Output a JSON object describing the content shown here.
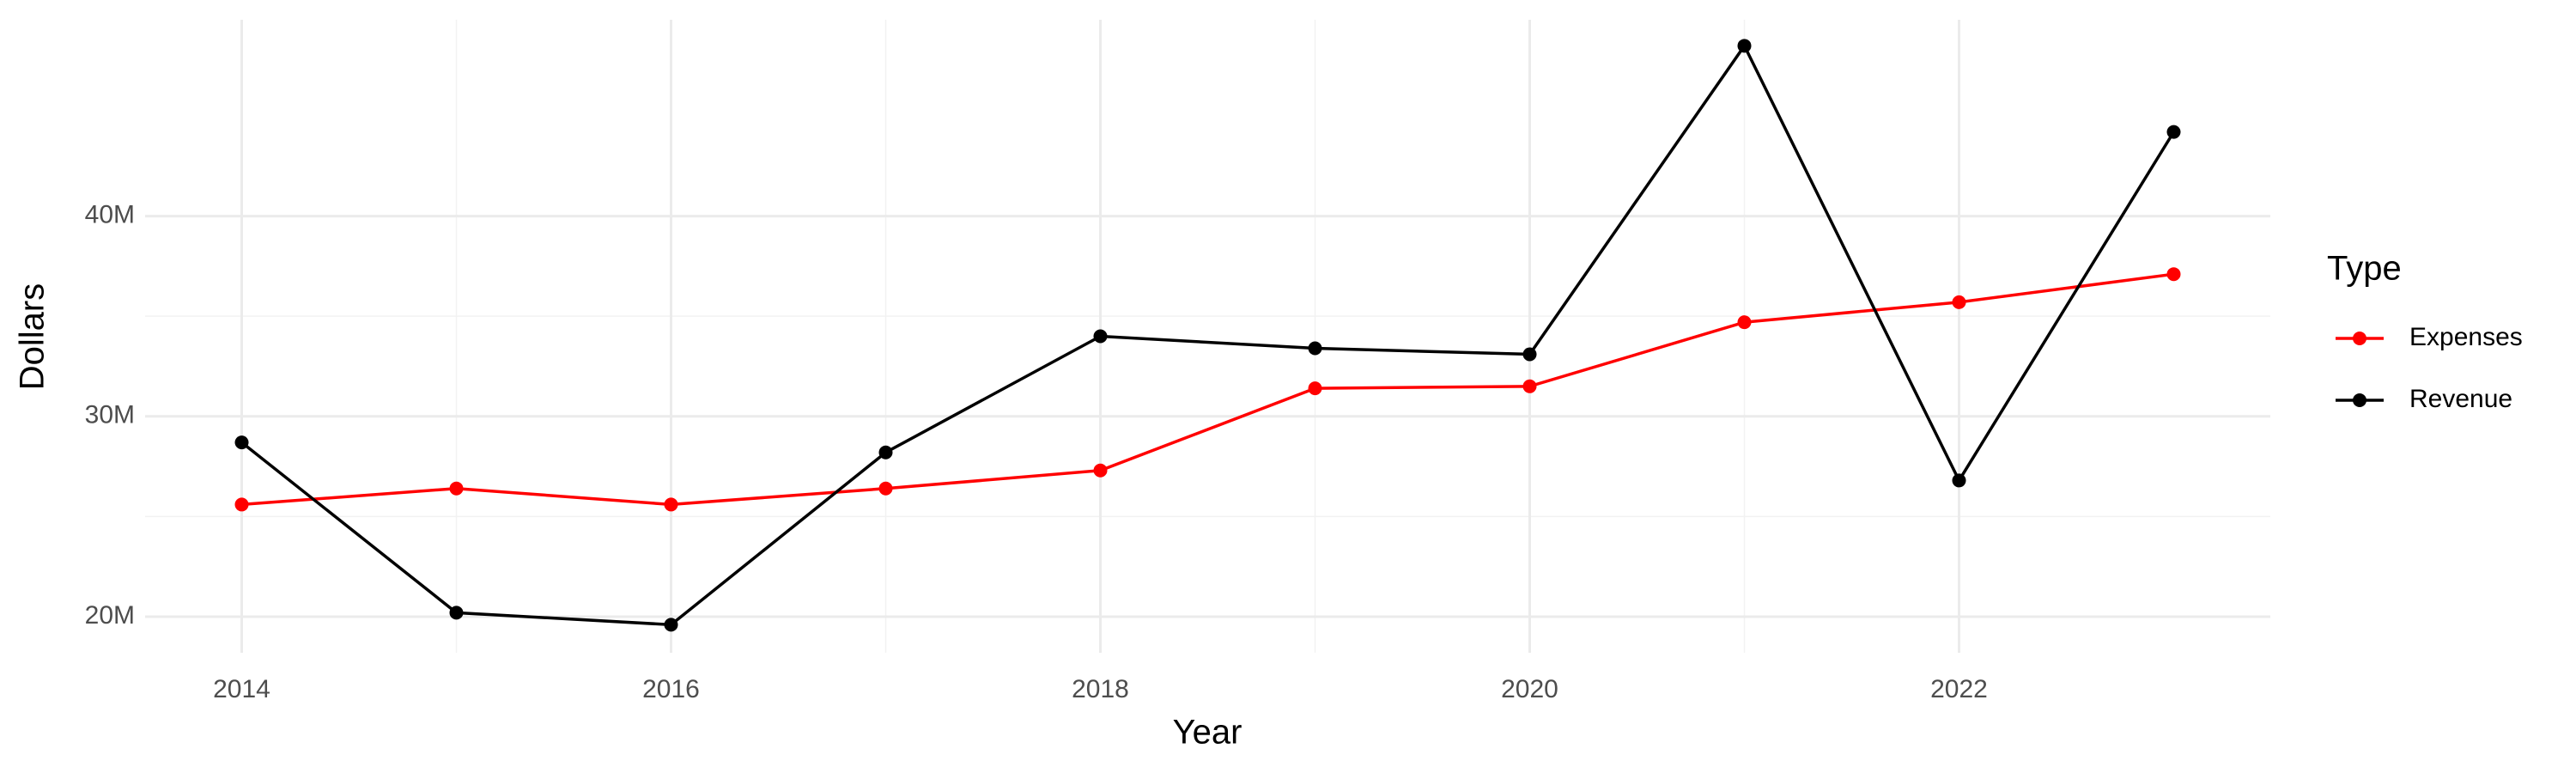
{
  "chart_data": {
    "type": "line",
    "x_label": "Year",
    "y_label": "Dollars",
    "legend_title": "Type",
    "legend_position": "right",
    "grid": true,
    "x": [
      2014,
      2015,
      2016,
      2017,
      2018,
      2019,
      2020,
      2021,
      2022,
      2023
    ],
    "series": [
      {
        "name": "Expenses",
        "color": "#ff0000",
        "values": [
          25600000,
          26400000,
          25600000,
          26400000,
          27300000,
          31400000,
          31500000,
          34700000,
          35700000,
          37100000
        ]
      },
      {
        "name": "Revenue",
        "color": "#000000",
        "values": [
          28700000,
          20200000,
          19600000,
          28200000,
          34000000,
          33400000,
          33100000,
          48500000,
          26800000,
          44200000
        ]
      }
    ],
    "xlim": [
      2013.55,
      2023.45
    ],
    "xticks": [
      2014,
      2016,
      2018,
      2020,
      2022
    ],
    "ylim": [
      18200000,
      49800000
    ],
    "yticks": [
      {
        "value": 20000000,
        "label": "20M"
      },
      {
        "value": 30000000,
        "label": "30M"
      },
      {
        "value": 40000000,
        "label": "40M"
      }
    ]
  }
}
